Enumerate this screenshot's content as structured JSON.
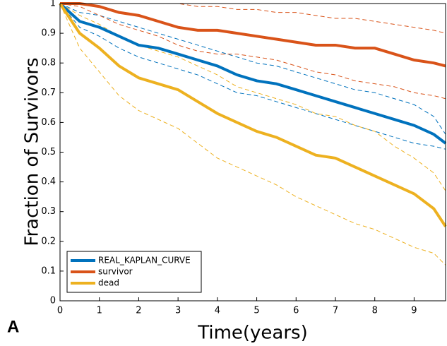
{
  "chart_data": {
    "type": "line",
    "x_label": "Time(years)",
    "y_label": "Fraction of Survivors",
    "panel_label": "A",
    "x": [
      0,
      0.5,
      1,
      1.5,
      2,
      2.5,
      3,
      3.5,
      4,
      4.5,
      5,
      5.5,
      6,
      6.5,
      7,
      7.5,
      8,
      8.5,
      9,
      9.5,
      9.8
    ],
    "xlim": [
      0,
      9.8
    ],
    "xticks": [
      0,
      1,
      2,
      3,
      4,
      5,
      6,
      7,
      8,
      9
    ],
    "ylim": [
      0,
      1
    ],
    "yticks": [
      0,
      0.1,
      0.2,
      0.3,
      0.4,
      0.5,
      0.6,
      0.7,
      0.8,
      0.9,
      1
    ],
    "legend": "lower left",
    "series": [
      {
        "name": "REAL_KAPLAN_CURVE",
        "color": "#0072bd",
        "values": [
          1,
          0.94,
          0.92,
          0.89,
          0.86,
          0.85,
          0.83,
          0.81,
          0.79,
          0.76,
          0.74,
          0.73,
          0.71,
          0.69,
          0.67,
          0.65,
          0.63,
          0.61,
          0.59,
          0.56,
          0.53
        ],
        "upper": [
          1,
          0.97,
          0.96,
          0.94,
          0.92,
          0.9,
          0.88,
          0.86,
          0.84,
          0.82,
          0.8,
          0.79,
          0.77,
          0.75,
          0.73,
          0.71,
          0.7,
          0.68,
          0.66,
          0.62,
          0.56
        ],
        "lower": [
          1,
          0.92,
          0.89,
          0.85,
          0.82,
          0.8,
          0.78,
          0.76,
          0.73,
          0.7,
          0.69,
          0.67,
          0.65,
          0.63,
          0.61,
          0.59,
          0.57,
          0.55,
          0.53,
          0.52,
          0.51
        ]
      },
      {
        "name": "survivor",
        "color": "#d95319",
        "values": [
          1,
          1,
          0.99,
          0.97,
          0.96,
          0.94,
          0.92,
          0.91,
          0.91,
          0.9,
          0.89,
          0.88,
          0.87,
          0.86,
          0.86,
          0.85,
          0.85,
          0.83,
          0.81,
          0.8,
          0.79
        ],
        "upper": [
          1,
          1,
          1,
          1,
          1,
          1,
          1,
          0.99,
          0.99,
          0.98,
          0.98,
          0.97,
          0.97,
          0.96,
          0.95,
          0.95,
          0.94,
          0.93,
          0.92,
          0.91,
          0.9
        ],
        "lower": [
          1,
          0.99,
          0.96,
          0.93,
          0.91,
          0.89,
          0.86,
          0.84,
          0.83,
          0.83,
          0.82,
          0.81,
          0.79,
          0.77,
          0.76,
          0.74,
          0.73,
          0.72,
          0.7,
          0.69,
          0.68
        ]
      },
      {
        "name": "dead",
        "color": "#edb120",
        "values": [
          1,
          0.9,
          0.85,
          0.79,
          0.75,
          0.73,
          0.71,
          0.67,
          0.63,
          0.6,
          0.57,
          0.55,
          0.52,
          0.49,
          0.48,
          0.45,
          0.42,
          0.39,
          0.36,
          0.31,
          0.25
        ],
        "upper": [
          1,
          0.96,
          0.93,
          0.89,
          0.86,
          0.84,
          0.82,
          0.79,
          0.76,
          0.72,
          0.7,
          0.68,
          0.66,
          0.63,
          0.62,
          0.59,
          0.57,
          0.52,
          0.48,
          0.43,
          0.37
        ],
        "lower": [
          1,
          0.85,
          0.77,
          0.69,
          0.64,
          0.61,
          0.58,
          0.53,
          0.48,
          0.45,
          0.42,
          0.39,
          0.35,
          0.32,
          0.29,
          0.26,
          0.24,
          0.21,
          0.18,
          0.16,
          0.12
        ]
      }
    ]
  }
}
